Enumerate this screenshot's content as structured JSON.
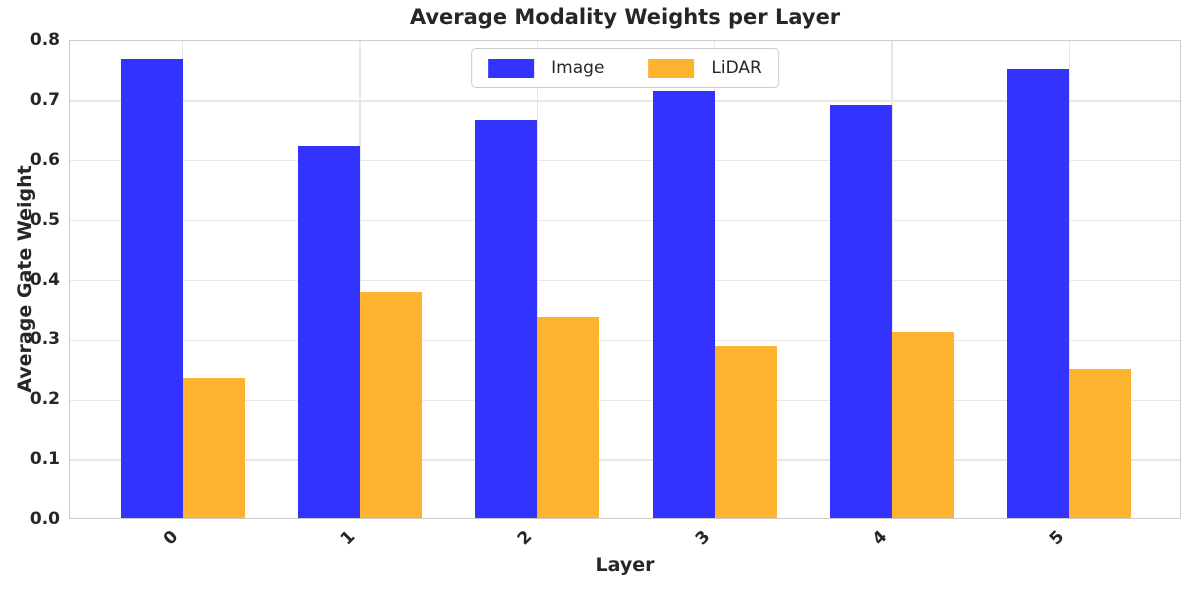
{
  "chart_data": {
    "type": "bar",
    "title": "Average Modality Weights per Layer",
    "xlabel": "Layer",
    "ylabel": "Average Gate Weight",
    "categories": [
      "0",
      "1",
      "2",
      "3",
      "4",
      "5"
    ],
    "series": [
      {
        "name": "Image",
        "color": "#3333fe",
        "values": [
          0.766,
          0.622,
          0.665,
          0.713,
          0.69,
          0.75
        ]
      },
      {
        "name": "LiDAR",
        "color": "#feb32f",
        "values": [
          0.234,
          0.378,
          0.335,
          0.287,
          0.31,
          0.249
        ]
      }
    ],
    "ylim": [
      0.0,
      0.8
    ],
    "yticks": [
      "0.0",
      "0.1",
      "0.2",
      "0.3",
      "0.4",
      "0.5",
      "0.6",
      "0.7",
      "0.8"
    ],
    "x_tick_rotation_deg": 45,
    "grid": "on",
    "legend_position": "upper center"
  }
}
